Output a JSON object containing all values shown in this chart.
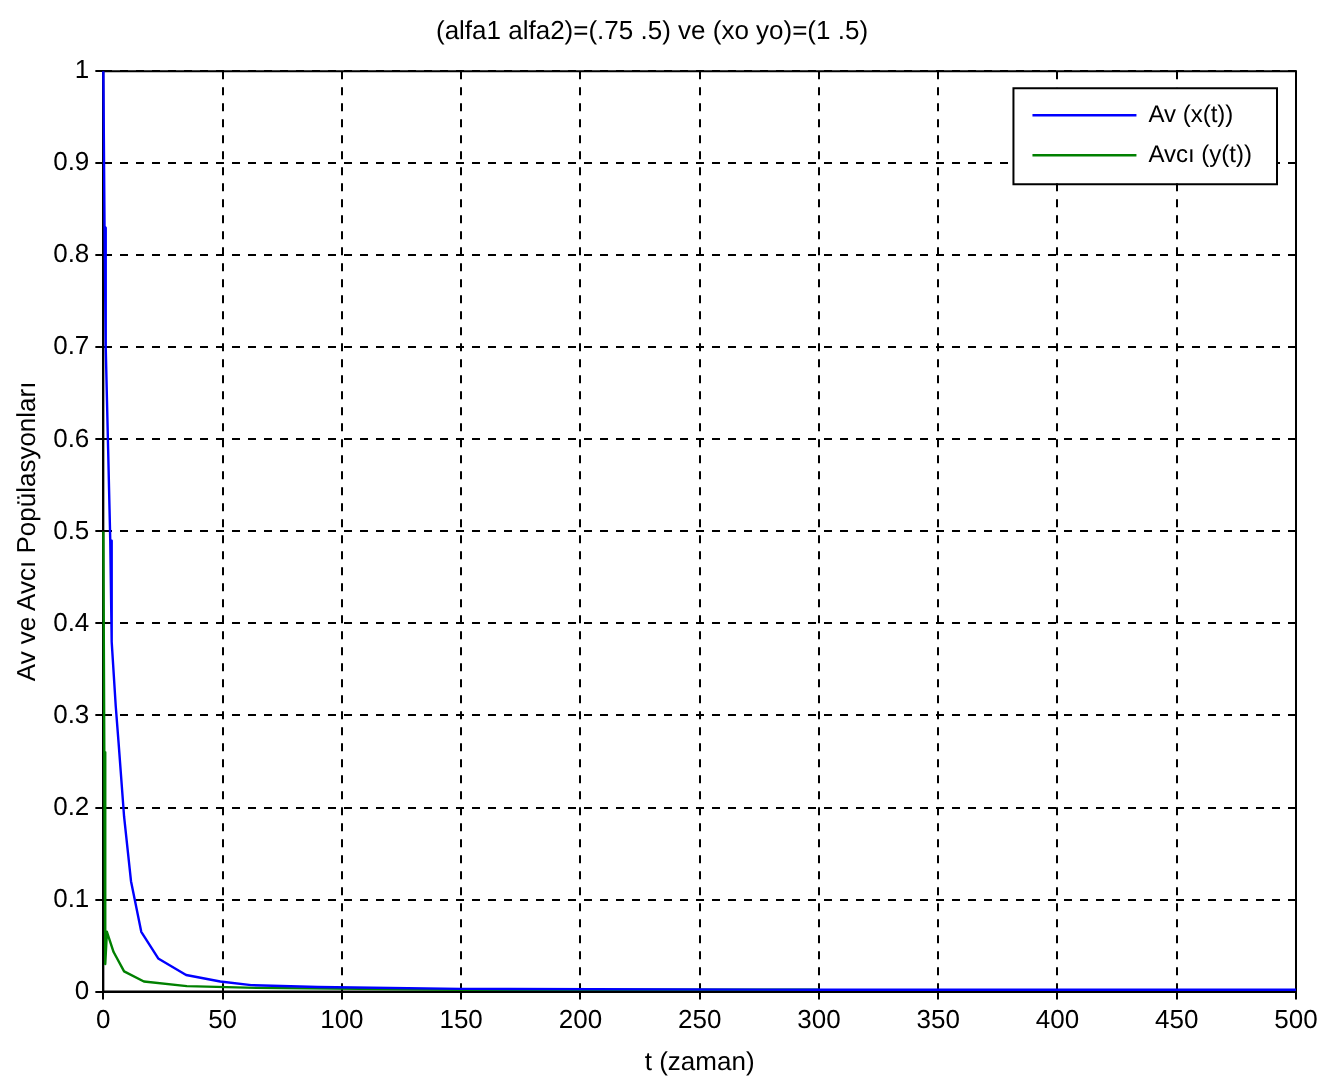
{
  "chart_data": {
    "type": "line",
    "title": "(alfa1 alfa2)=(.75 .5) ve (xo yo)=(1 .5)",
    "xlabel": "t (zaman)",
    "ylabel": "Av ve Avcı Popülasyonları",
    "xlim": [
      0,
      500
    ],
    "xticks": [
      0,
      50,
      100,
      150,
      200,
      250,
      300,
      350,
      400,
      450,
      500
    ],
    "ylim": [
      0,
      1
    ],
    "yticks": [
      0,
      0.1,
      0.2,
      0.3,
      0.4,
      0.5,
      0.6,
      0.7,
      0.8,
      0.9,
      1
    ],
    "grid": true,
    "legend": "top right",
    "marker": "none",
    "line_style": "solid",
    "series": [
      {
        "name": "Av (x(t))",
        "color": "#0000ff",
        "x": [
          0,
          0.5,
          1,
          2,
          2.9,
          3.5,
          5.2,
          6.4,
          8.7,
          11.6,
          15.9,
          23,
          34.7,
          49,
          62,
          90,
          150,
          300,
          500
        ],
        "values": [
          1,
          0.83,
          0.7,
          0.59,
          0.49,
          0.38,
          0.31,
          0.27,
          0.19,
          0.12,
          0.065,
          0.036,
          0.018,
          0.011,
          0.007,
          0.005,
          0.003,
          0.002,
          0.002
        ]
      },
      {
        "name": "Avcı (y(t))",
        "color": "#008000",
        "x": [
          0,
          0.4,
          0.8,
          1.5,
          4.3,
          8.7,
          17,
          35,
          64,
          150,
          300
        ],
        "values": [
          0.5,
          0.26,
          0.03,
          0.065,
          0.043,
          0.022,
          0.011,
          0.006,
          0.004,
          0.002,
          0.002
        ]
      }
    ]
  }
}
